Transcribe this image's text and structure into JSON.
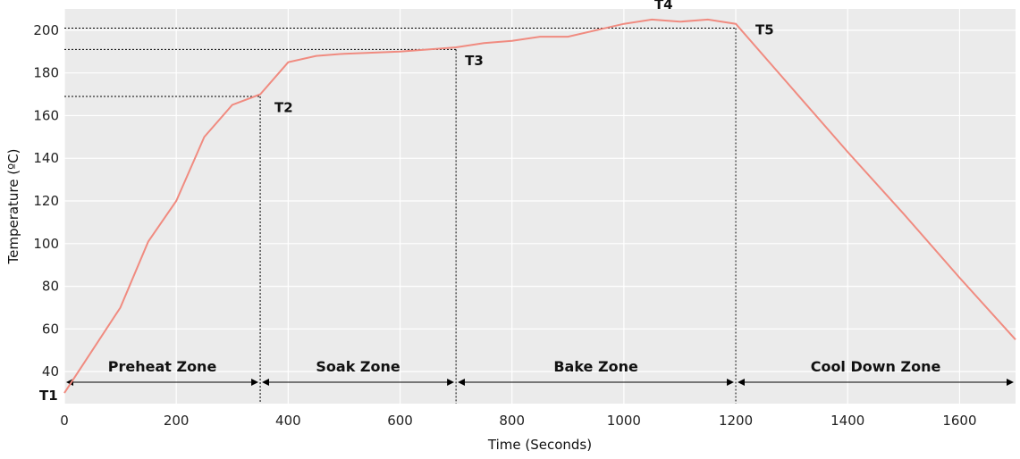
{
  "chart_data": {
    "type": "line",
    "title": "",
    "xlabel": "Time (Seconds)",
    "ylabel": "Temperature (ºC)",
    "xlim": [
      0,
      1700
    ],
    "ylim": [
      25,
      210
    ],
    "x_ticks": [
      0,
      200,
      400,
      600,
      800,
      1000,
      1200,
      1400,
      1600
    ],
    "y_ticks": [
      40,
      60,
      80,
      100,
      120,
      140,
      160,
      180,
      200
    ],
    "grid": true,
    "background": "#ebebeb",
    "grid_color": "#ffffff",
    "line_color": "#f08b80",
    "series": [
      {
        "x": [
          0,
          100,
          150,
          200,
          250,
          300,
          350,
          400,
          450,
          500,
          600,
          700,
          750,
          800,
          850,
          900,
          1000,
          1050,
          1100,
          1150,
          1200,
          1300,
          1400,
          1500,
          1600,
          1700
        ],
        "values": [
          30,
          70,
          101,
          120,
          150,
          165,
          170,
          185,
          188,
          189,
          190,
          192,
          194,
          195,
          197,
          197,
          203,
          205,
          204,
          205,
          203,
          173,
          143,
          114,
          84,
          55
        ]
      }
    ],
    "reference_lines": [
      {
        "x": 350,
        "y": 169
      },
      {
        "x": 700,
        "y": 191
      },
      {
        "x": 1200,
        "y": 201
      }
    ],
    "annotations": [
      {
        "text": "T1",
        "x": 0,
        "y": 30
      },
      {
        "text": "T2",
        "x": 350,
        "y": 170
      },
      {
        "text": "T3",
        "x": 700,
        "y": 192
      },
      {
        "text": "T4",
        "x": 1080,
        "y": 205
      },
      {
        "text": "T5",
        "x": 1200,
        "y": 203
      }
    ],
    "zones": [
      {
        "label": "Preheat Zone",
        "start": 0,
        "end": 350
      },
      {
        "label": "Soak Zone",
        "start": 350,
        "end": 700
      },
      {
        "label": "Bake Zone",
        "start": 700,
        "end": 1200
      },
      {
        "label": "Cool Down Zone",
        "start": 1200,
        "end": 1700
      }
    ]
  }
}
